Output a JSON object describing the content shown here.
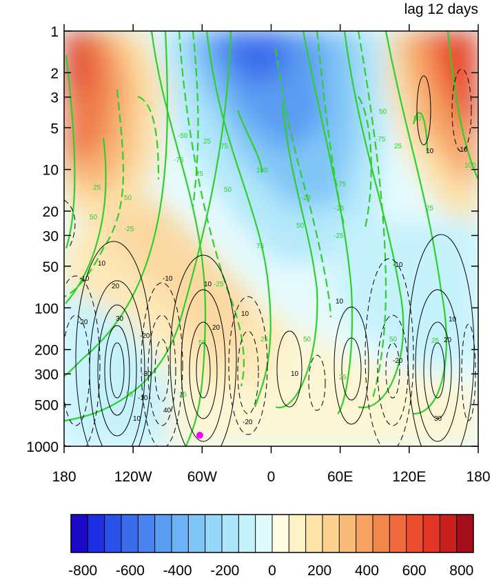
{
  "chart_data": {
    "type": "heatmap",
    "title": "lag 12 days",
    "x_ticks": [
      "180",
      "120W",
      "60W",
      "0",
      "60E",
      "120E",
      "180"
    ],
    "y_ticks": [
      "1",
      "2",
      "3",
      "5",
      "10",
      "20",
      "30",
      "50",
      "100",
      "200",
      "300",
      "500",
      "1000"
    ],
    "y_scale": "log",
    "y_reversed": true,
    "colorbar": {
      "ticks": [
        "-800",
        "-600",
        "-400",
        "-200",
        "0",
        "200",
        "400",
        "600",
        "800"
      ],
      "range": [
        -850,
        850
      ],
      "step": 50,
      "colors": [
        "#1a0ac8",
        "#1f2fe6",
        "#2a52e8",
        "#3a6cec",
        "#4a84f0",
        "#5a9cf2",
        "#6cb2f4",
        "#80c6f6",
        "#96d8f8",
        "#ade6fa",
        "#c6f2fc",
        "#e0fafd",
        "#fdfbe2",
        "#fdf1c6",
        "#fde4aa",
        "#fbd290",
        "#f8bc78",
        "#f5a262",
        "#f2874e",
        "#ef6a3c",
        "#ea4c2e",
        "#e23526",
        "#c81f1f",
        "#a50f1a"
      ]
    },
    "green_contour_labels": [
      "-50",
      "-25",
      "25",
      "50",
      "75",
      "100",
      "-75"
    ],
    "black_contour_labels": [
      "10",
      "20",
      "30",
      "40",
      "-10",
      "-20",
      "-30"
    ],
    "marker": {
      "lon": -60,
      "pressure": 880,
      "color": "#ff00ff"
    }
  }
}
